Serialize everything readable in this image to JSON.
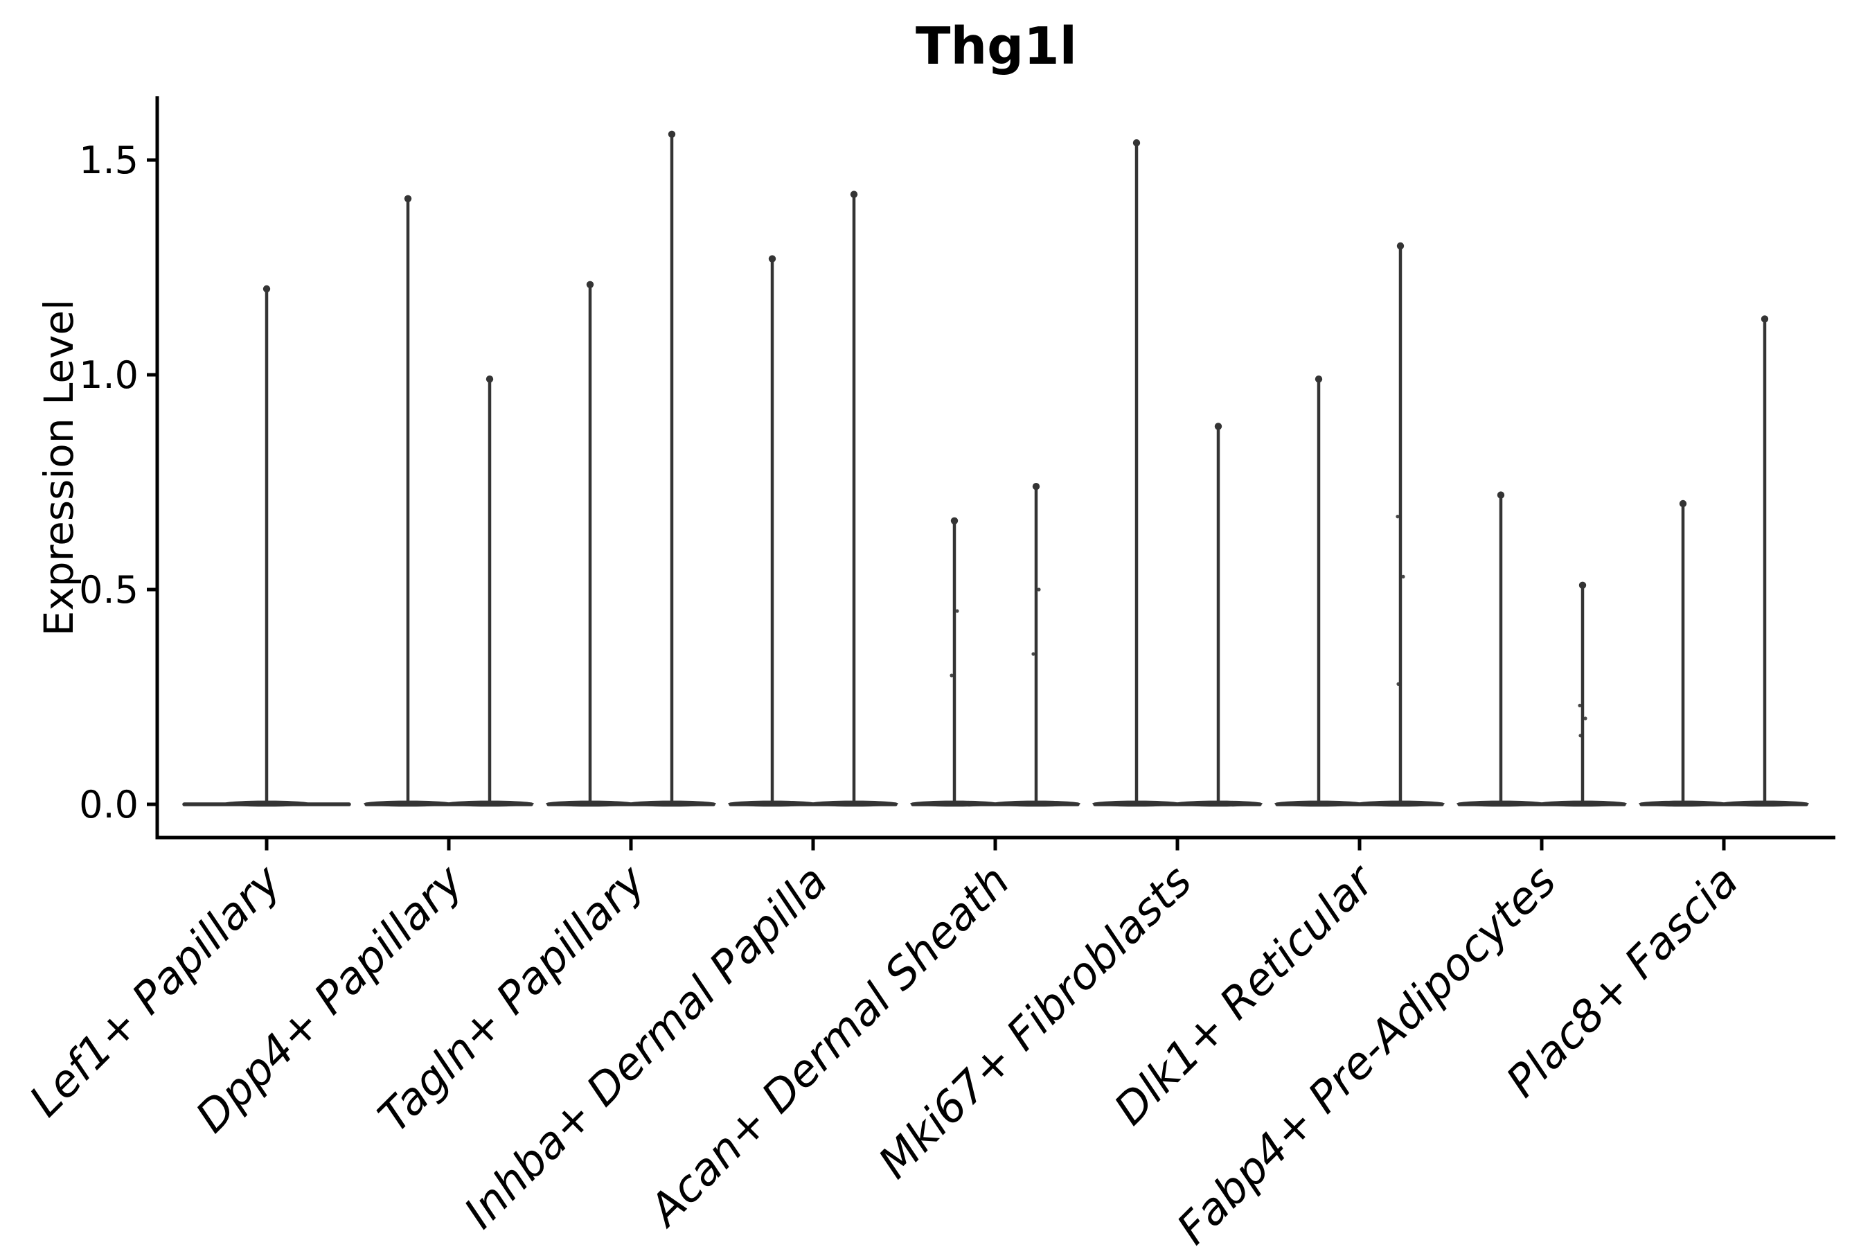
{
  "figure": {
    "background": "#ffffff"
  },
  "chart_data": {
    "type": "violin",
    "title": "Thg1l",
    "xlabel": "",
    "ylabel": "Expression Level",
    "grid": false,
    "legend": null,
    "ylim": [
      -0.08,
      1.65
    ],
    "ytick_values": [
      0.0,
      0.5,
      1.0,
      1.5
    ],
    "ytick_labels": [
      "0.0",
      "0.5",
      "1.0",
      "1.5"
    ],
    "categories": [
      "Lef1+ Papillary",
      "Dpp4+ Papillary",
      "Tagln+ Papillary",
      "Inhba+ Dermal Papilla",
      "Acan+ Dermal Sheath",
      "Mki67+ Fibroblasts",
      "Dlk1+ Reticular",
      "Fabp4+ Pre-Adipocytes",
      "Plac8+ Fascia"
    ],
    "violin_max_per_category": [
      [
        1.2
      ],
      [
        1.41,
        0.99
      ],
      [
        1.21,
        1.56
      ],
      [
        1.27,
        1.42
      ],
      [
        0.66,
        0.74
      ],
      [
        1.54,
        0.88
      ],
      [
        0.99,
        1.3
      ],
      [
        0.72,
        0.51
      ],
      [
        0.7,
        1.13
      ]
    ],
    "jitter_dots_per_category": [
      [
        []
      ],
      [
        [],
        []
      ],
      [
        [],
        []
      ],
      [
        [],
        []
      ],
      [
        [
          0.3,
          0.45
        ],
        [
          0.35,
          0.5
        ]
      ],
      [
        [],
        []
      ],
      [
        [],
        [
          0.67,
          0.53,
          0.28
        ]
      ],
      [
        [],
        [
          0.23,
          0.2,
          0.16
        ]
      ],
      [
        [],
        []
      ]
    ],
    "colors": {
      "violin": "#343434",
      "axes": "#000000",
      "text": "#000000",
      "background": "#ffffff"
    },
    "x_tick_label_style": "italic",
    "title_style": "bold"
  }
}
